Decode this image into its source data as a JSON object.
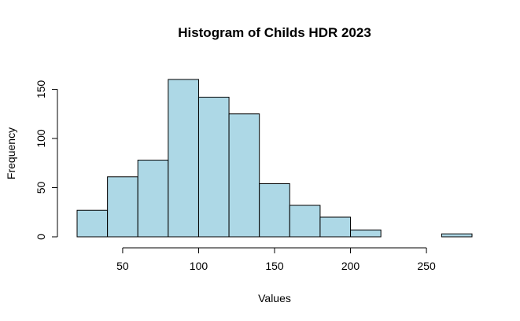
{
  "chart_data": {
    "type": "histogram",
    "title": "Histogram of Childs HDR 2023",
    "xlabel": "Values",
    "ylabel": "Frequency",
    "bin_edges": [
      20,
      40,
      60,
      80,
      100,
      120,
      140,
      160,
      180,
      200,
      220,
      240,
      260,
      280
    ],
    "values": [
      27,
      61,
      78,
      160,
      142,
      125,
      54,
      32,
      20,
      7,
      0,
      0,
      3
    ],
    "xlim": [
      20,
      280
    ],
    "ylim": [
      0,
      160
    ],
    "x_ticks": [
      50,
      100,
      150,
      200,
      250
    ],
    "y_ticks": [
      0,
      50,
      100,
      150
    ],
    "bar_color": "#add8e6",
    "grid": false
  }
}
